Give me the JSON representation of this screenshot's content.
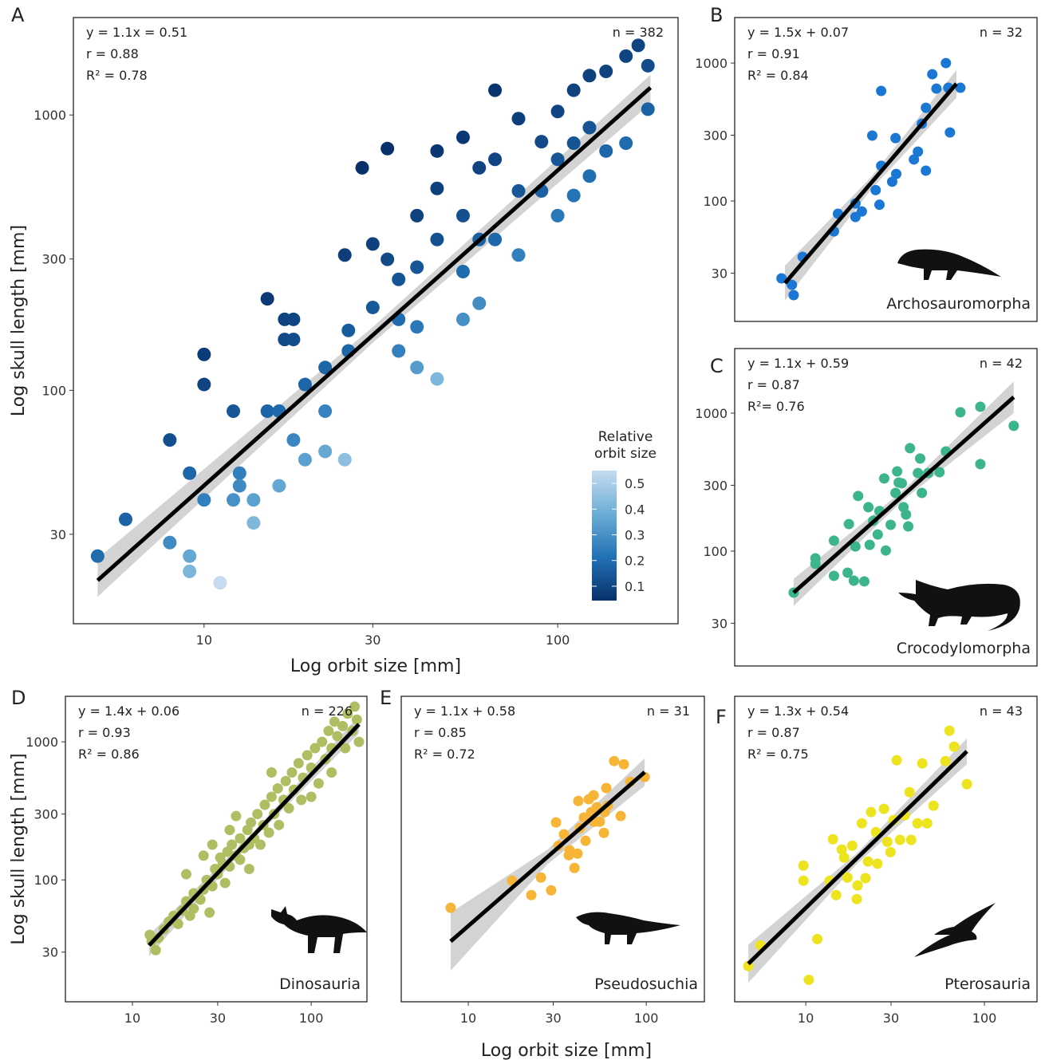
{
  "chart_data": [
    {
      "type": "scatter",
      "panel": "A",
      "xlabel": "Log orbit size [mm]",
      "ylabel": "Log skull length [mm]",
      "stats": [
        "y = 1.1x = 0.51",
        "r = 0.88",
        "R² = 0.78"
      ],
      "n": "n = 382",
      "log": true,
      "xlim": [
        4.27,
        219
      ],
      "ylim": [
        14.2,
        2259
      ],
      "xticks": [
        10,
        30,
        100
      ],
      "yticks": [
        30,
        100,
        300,
        1000
      ],
      "colorbar": {
        "title": "Relative orbit size",
        "lim": [
          0.044,
          0.55
        ],
        "ticks": [
          0.1,
          0.2,
          0.3,
          0.4,
          0.5
        ],
        "colors": [
          "#08306b",
          "#2171b5",
          "#6baed6",
          "#c6dbef"
        ]
      },
      "x": [
        5.0,
        6,
        8,
        9.1,
        9.1,
        11.1,
        8,
        9.1,
        10,
        10,
        10,
        12.1,
        12.1,
        12.6,
        12.6,
        13.8,
        13.8,
        15.1,
        15.1,
        16.3,
        16.3,
        16.9,
        16.9,
        17.9,
        17.9,
        17.9,
        19.3,
        19.3,
        22,
        22,
        22,
        25,
        25,
        25.6,
        25.6,
        28,
        30,
        30,
        33,
        33,
        35.5,
        35.5,
        35.5,
        40,
        40,
        40,
        40,
        45.6,
        45.6,
        45.6,
        45.6,
        54,
        54,
        54,
        54,
        60,
        60,
        60,
        66.5,
        66.5,
        66.5,
        77.5,
        77.5,
        77.5,
        90,
        90,
        100,
        100,
        100,
        111,
        111,
        111,
        123,
        123,
        123,
        137,
        137,
        156,
        180,
        180,
        169,
        156
      ],
      "values": [
        25,
        34,
        28,
        25,
        22,
        20,
        66,
        50,
        40,
        135,
        105,
        84,
        40,
        50,
        45,
        33,
        40,
        215,
        84,
        84,
        45,
        181,
        153,
        153,
        66,
        181,
        105,
        56,
        121,
        84,
        60,
        56,
        310,
        165,
        139,
        643,
        340,
        200,
        755,
        299,
        253,
        181,
        139,
        431,
        280,
        170,
        121,
        740,
        541,
        353,
        110,
        830,
        431,
        270,
        181,
        643,
        353,
        207,
        1230,
        690,
        353,
        970,
        530,
        310,
        800,
        530,
        1030,
        690,
        431,
        1230,
        790,
        510,
        1390,
        900,
        600,
        1440,
        740,
        790,
        1050,
        1510,
        1790,
        1636
      ],
      "fit": {
        "x": [
          5,
          183
        ],
        "y": [
          20.4,
          1257
        ]
      },
      "band": {
        "x": [
          5,
          30.2,
          183
        ],
        "lower": [
          17.8,
          150,
          1100
        ],
        "upper": [
          24.5,
          171,
          1400
        ]
      }
    },
    {
      "type": "scatter",
      "panel": "B",
      "taxon": "Archosauromorpha",
      "color": "#1a78d4",
      "stats": [
        "y = 1.5x + 0.07",
        "r = 0.91",
        "R² = 0.84"
      ],
      "n": "n = 32",
      "log": true,
      "xlim": [
        4.22,
        205
      ],
      "ylim": [
        13.4,
        2138
      ],
      "yticks": [
        30,
        100,
        300,
        1000
      ],
      "x": [
        7.7,
        8.8,
        9.0,
        10.1,
        15.1,
        15.9,
        19.9,
        19.9,
        21.6,
        25.8,
        27.1,
        27.7,
        31.9,
        33.6,
        24.7,
        27.7,
        33.3,
        42.2,
        44.4,
        49.2,
        46.7,
        49.2,
        53.4,
        56.3,
        63.6,
        65.6,
        76.6,
        67
      ],
      "values": [
        27.5,
        24.7,
        20.8,
        39.4,
        60.2,
        80.9,
        76.6,
        96,
        84,
        120,
        94,
        180,
        138,
        157,
        298,
        628,
        286,
        200,
        228,
        166,
        364,
        474,
        830,
        653,
        1000,
        662,
        662,
        314
      ],
      "fit": {
        "x": [
          8.05,
          72.8
        ],
        "y": [
          25.4,
          708
        ]
      },
      "band": {
        "x": [
          8.05,
          24.2,
          72.8
        ],
        "lower": [
          19,
          120,
          560
        ],
        "upper": [
          34,
          148,
          890
        ]
      }
    },
    {
      "type": "scatter",
      "panel": "C",
      "taxon": "Crocodylomorpha",
      "color": "#3db58a",
      "stats": [
        "y = 1.1x + 0.59",
        "r = 0.87",
        "R²= 0.76"
      ],
      "n": "n = 42",
      "log": true,
      "xlim": [
        4.22,
        205
      ],
      "ylim": [
        14.7,
        2938
      ],
      "yticks": [
        30,
        100,
        300,
        1000
      ],
      "x": [
        9.0,
        11.9,
        11.9,
        15.1,
        18.0,
        19.5,
        22.3,
        15.1,
        18.3,
        20.6,
        23.5,
        25.0,
        27.1,
        19.9,
        23.9,
        26.5,
        29.4,
        31.3,
        33.3,
        34.0,
        36.1,
        36.9,
        40.1,
        38.1,
        39.2,
        45.7,
        44.4,
        46.7,
        50.7,
        58.6,
        63.6,
        76.6,
        99,
        99,
        152,
        28.8,
        34.7
      ],
      "values": [
        50,
        88.7,
        80.9,
        66.2,
        69.8,
        61.1,
        60.3,
        119,
        157,
        251,
        208,
        166,
        195,
        108,
        111,
        132,
        101,
        155,
        264,
        378,
        310,
        208,
        557,
        184,
        151,
        469,
        368,
        264,
        368,
        373,
        528,
        1014,
        1112,
        427,
        809,
        336,
        314
      ],
      "fit": {
        "x": [
          9,
          152
        ],
        "y": [
          50,
          1306
        ]
      },
      "band": {
        "x": [
          9,
          37,
          152
        ],
        "lower": [
          40,
          236,
          1000
        ],
        "upper": [
          63,
          278,
          1700
        ]
      }
    },
    {
      "type": "scatter",
      "panel": "D",
      "taxon": "Dinosauria",
      "color": "#aebf63",
      "ylabel": "Log skull length [mm]",
      "stats": [
        "y = 1.4x + 0.06",
        "r = 0.93",
        "R² = 0.86"
      ],
      "n": "n = 226",
      "log": true,
      "xlim": [
        4.22,
        205
      ],
      "ylim": [
        13.1,
        2138
      ],
      "xticks": [
        10,
        30,
        100
      ],
      "yticks": [
        30,
        100,
        300,
        1000
      ],
      "x": [
        12.5,
        12.8,
        13.5,
        14,
        15,
        16,
        17,
        18,
        19,
        20,
        21,
        22,
        22,
        24,
        25,
        26,
        27,
        28,
        29,
        30,
        31,
        32,
        33,
        34,
        35,
        36,
        38,
        38,
        40,
        40,
        42,
        44,
        45,
        46,
        48,
        50,
        52,
        54,
        55,
        58,
        60,
        62,
        65,
        66,
        70,
        72,
        75,
        78,
        80,
        85,
        88,
        90,
        95,
        100,
        105,
        110,
        115,
        120,
        125,
        130,
        135,
        140,
        150,
        155,
        160,
        170,
        175,
        180,
        185,
        25,
        20,
        28,
        35,
        45,
        60,
        100,
        130
      ],
      "values": [
        40,
        36,
        31,
        38,
        44,
        50,
        55,
        48,
        60,
        70,
        55,
        80,
        62,
        72,
        85,
        100,
        58,
        90,
        120,
        110,
        145,
        130,
        95,
        160,
        125,
        180,
        150,
        290,
        200,
        140,
        170,
        230,
        120,
        260,
        200,
        300,
        180,
        250,
        350,
        220,
        400,
        300,
        460,
        250,
        380,
        520,
        330,
        600,
        450,
        700,
        380,
        550,
        800,
        650,
        900,
        500,
        1000,
        750,
        1200,
        900,
        1400,
        1100,
        1300,
        900,
        1600,
        1200,
        1800,
        1450,
        1000,
        150,
        110,
        180,
        230,
        180,
        600,
        400,
        600
      ],
      "fit": {
        "x": [
          12.4,
          185
        ],
        "y": [
          33.6,
          1340
        ]
      },
      "band": {
        "x": [
          12.4,
          47.9,
          185
        ],
        "lower": [
          28,
          200,
          1150
        ],
        "upper": [
          40,
          225,
          1550
        ]
      }
    },
    {
      "type": "scatter",
      "panel": "E",
      "taxon": "Pseudosuchia",
      "color": "#f7b538",
      "xlabel": "Log orbit size [mm]",
      "stats": [
        "y = 1.1x + 0.58",
        "r = 0.85",
        "R² = 0.72"
      ],
      "n": "n = 31",
      "log": true,
      "xlim": [
        4.2,
        212
      ],
      "ylim": [
        13.1,
        2138
      ],
      "xticks": [
        10,
        30,
        100
      ],
      "x": [
        7.96,
        17.6,
        22.6,
        25.6,
        29.2,
        31.1,
        34.5,
        32.1,
        37.1,
        36.7,
        39.5,
        41.1,
        41.5,
        42.4,
        44.6,
        45.6,
        47.5,
        49,
        50.6,
        52.7,
        54.8,
        57.8,
        60.8,
        58.4,
        66,
        71.8,
        74.8,
        81.3,
        97.9,
        59.6,
        51
      ],
      "values": [
        62.8,
        98.7,
        77.6,
        104,
        84.1,
        261,
        214,
        177,
        164,
        151,
        122,
        155,
        373,
        238,
        283,
        192,
        384,
        310,
        410,
        336,
        264,
        219,
        345,
        310,
        726,
        290,
        688,
        514,
        557,
        463,
        264
      ],
      "fit": {
        "x": [
          7.96,
          97.9
        ],
        "y": [
          35.9,
          603
        ]
      },
      "band": {
        "x": [
          7.96,
          27.9,
          97.9
        ],
        "lower": [
          22,
          130,
          480
        ],
        "upper": [
          58,
          166,
          760
        ]
      }
    },
    {
      "type": "scatter",
      "panel": "F",
      "taxon": "Pterosauria",
      "color": "#ede31e",
      "stats": [
        "y = 1.3x + 0.54",
        "r = 0.87",
        "R² = 0.75"
      ],
      "n": "n = 43",
      "log": true,
      "xlim": [
        4.0,
        197
      ],
      "ylim": [
        13.1,
        2138
      ],
      "xticks": [
        10,
        30,
        100
      ],
      "x": [
        4.77,
        5.57,
        10.4,
        9.7,
        9.7,
        11.6,
        13.6,
        14.2,
        14.8,
        15.9,
        16.4,
        17.1,
        18.2,
        19.5,
        19.3,
        20.6,
        21.6,
        23.2,
        24.7,
        25.2,
        27.4,
        28.6,
        29.8,
        31,
        32.3,
        33.7,
        35.8,
        38.1,
        38.9,
        42.2,
        44.9,
        47.8,
        51.9,
        60.5,
        63.7,
        67.7,
        79.8,
        22.3
      ],
      "values": [
        23.8,
        33.6,
        18.9,
        127,
        98.7,
        37.3,
        98.7,
        197,
        77.6,
        166,
        145,
        104,
        177,
        91.2,
        72.6,
        257,
        103,
        310,
        222,
        131,
        327,
        189,
        159,
        271,
        736,
        195,
        294,
        432,
        195,
        257,
        698,
        257,
        345,
        726,
        1205,
        923,
        494,
        136
      ],
      "fit": {
        "x": [
          4.77,
          79.8
        ],
        "y": [
          24.7,
          853
        ]
      },
      "band": {
        "x": [
          4.77,
          19.5,
          79.8
        ],
        "lower": [
          18,
          132,
          690
        ],
        "upper": [
          34,
          158,
          1060
        ]
      }
    }
  ]
}
